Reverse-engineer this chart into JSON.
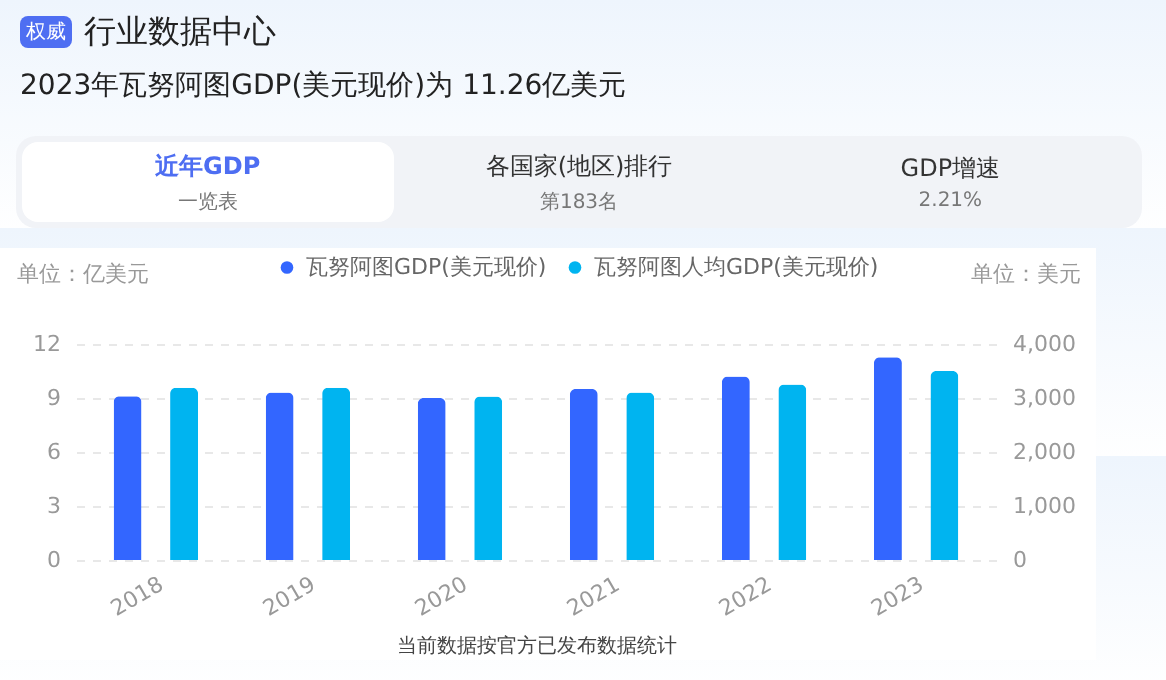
{
  "chart_data": {
    "type": "bar",
    "title": "2023年瓦努阿图GDP(美元现价)为 11.26亿美元",
    "ylabel": "单位：亿美元",
    "y2label": "单位：美元",
    "annotations": [
      "权威",
      "行业数据中心",
      "近年GDP",
      "一览表",
      "各国家(地区)排行",
      "第183名",
      "GDP增速",
      "2.21%",
      "当前数据按官方已发布数据统计"
    ],
    "categories": [
      "2018",
      "2019",
      "2020",
      "2021",
      "2022",
      "2023"
    ],
    "series": [
      {
        "name": "瓦努阿图GDP(美元现价)",
        "color": "#3366ff",
        "values": [
          9.1,
          9.3,
          9.0,
          9.5,
          10.2,
          11.26
        ]
      },
      {
        "name": "瓦努阿图人均GDP(美元现价)",
        "color": "#00b4f0",
        "axis": "y2",
        "values": [
          3190,
          3190,
          3030,
          3100,
          3250,
          3500
        ]
      }
    ],
    "ylim": [
      0,
      12
    ],
    "yticks": [
      0,
      3,
      6,
      9,
      12
    ],
    "y2lim": [
      0,
      4000
    ],
    "y2ticks": [
      0,
      {
        "value": 1000,
        "label": "1,000"
      },
      {
        "value": 2000,
        "label": "2,000"
      },
      {
        "value": 3000,
        "label": "3,000"
      },
      {
        "value": 4000,
        "label": "4,000"
      }
    ],
    "grid": "y",
    "legend": "top"
  }
}
